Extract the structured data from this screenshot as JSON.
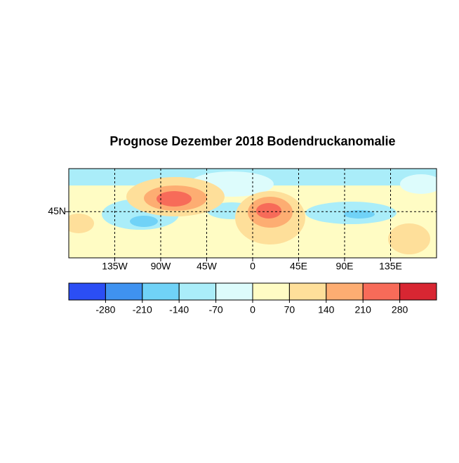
{
  "chart_data": {
    "type": "map",
    "title": "Prognose Dezember 2018 Bodendruckanomalie",
    "xlim": [
      -180,
      180
    ],
    "ylim": [
      0,
      87
    ],
    "xticks": [
      {
        "value": -135,
        "label": "135W"
      },
      {
        "value": -90,
        "label": "90W"
      },
      {
        "value": -45,
        "label": "45W"
      },
      0,
      {
        "value": 45,
        "label": "45E"
      },
      {
        "value": 90,
        "label": "90E"
      },
      {
        "value": 135,
        "label": "135E"
      }
    ],
    "yticks": [
      {
        "value": 45,
        "label": "45N"
      }
    ],
    "grid": true,
    "colorbar": {
      "clim": [
        -350,
        350
      ],
      "ticks": [
        -280,
        -210,
        -140,
        -70,
        0,
        70,
        140,
        210,
        280
      ],
      "colors": [
        "#2b4ef5",
        "#3f92f0",
        "#70d2f7",
        "#aaedf9",
        "#ddfcfc",
        "#fffcc4",
        "#fedf9a",
        "#fdad72",
        "#f76b59",
        "#d82632"
      ]
    }
  }
}
